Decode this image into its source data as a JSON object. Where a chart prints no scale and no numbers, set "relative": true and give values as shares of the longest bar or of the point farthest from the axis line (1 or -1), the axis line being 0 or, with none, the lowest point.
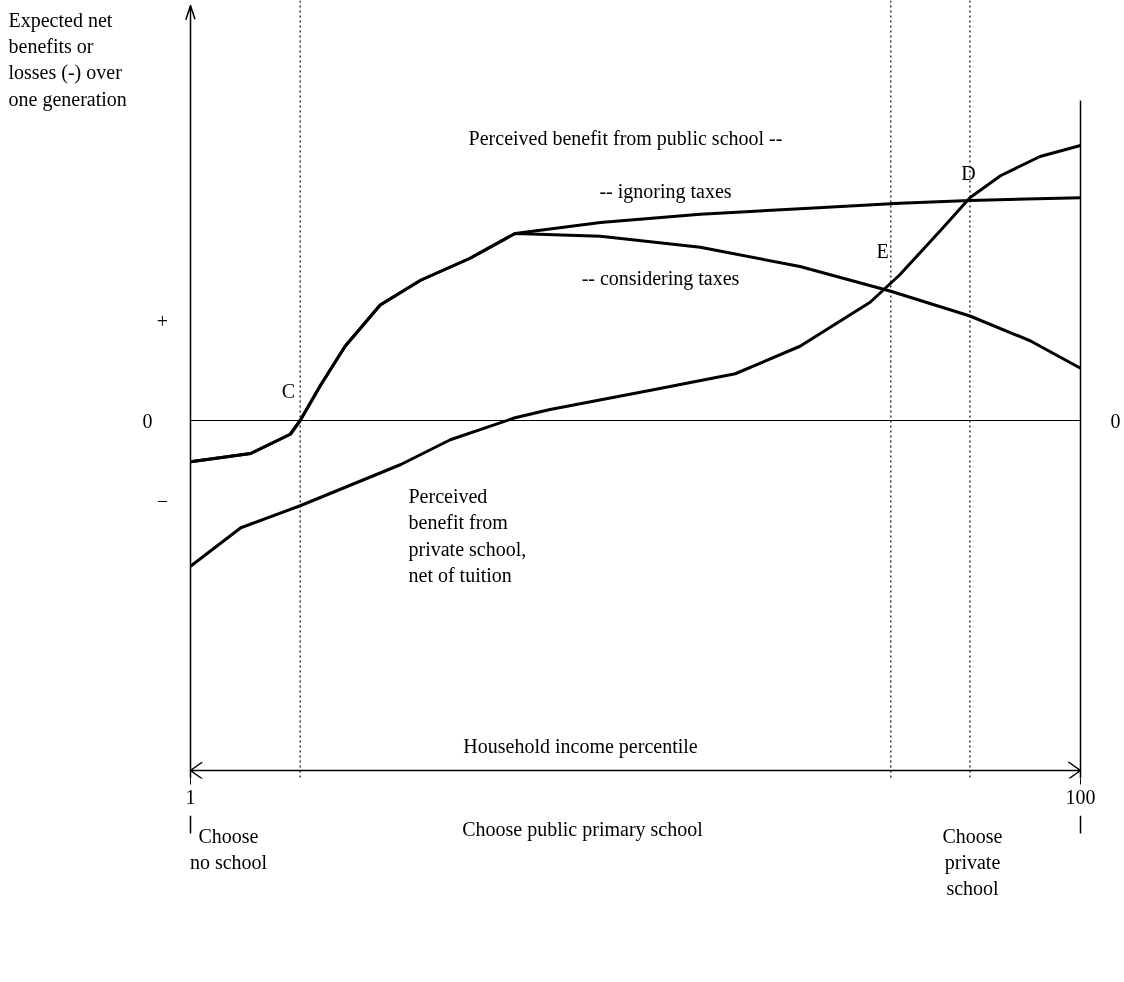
{
  "chart_data": {
    "type": "line",
    "relative": true,
    "xlabel": "Household income percentile",
    "ylabel": "Expected net benefits or losses (-) over one generation",
    "xlim": [
      1,
      100
    ],
    "xticks": [
      1,
      100
    ],
    "series": [
      {
        "color": "#000000",
        "x": [
          1,
          7.7,
          12.1,
          13.2,
          15.5,
          18.2,
          22.1,
          26.6,
          32.1,
          37.1,
          46.6,
          57.7,
          68.8,
          79.9,
          87.7,
          100
        ],
        "values": [
          -0.15,
          -0.12,
          -0.05,
          0,
          0.13,
          0.27,
          0.42,
          0.51,
          0.59,
          0.68,
          0.72,
          0.75,
          0.77,
          0.79,
          0.8,
          0.81
        ]
      },
      {
        "color": "#000000",
        "x": [
          1,
          7.7,
          12.1,
          13.2,
          15.5,
          18.2,
          22.1,
          26.6,
          32.1,
          37.1,
          46.6,
          57.7,
          68.8,
          78.9,
          87.7,
          94.4,
          100
        ],
        "values": [
          -0.15,
          -0.12,
          -0.05,
          0,
          0.13,
          0.27,
          0.42,
          0.51,
          0.59,
          0.68,
          0.67,
          0.63,
          0.56,
          0.47,
          0.38,
          0.29,
          0.19
        ]
      },
      {
        "color": "#000000",
        "x": [
          1,
          6.6,
          13.2,
          24.4,
          29.9,
          37.1,
          41.0,
          52.2,
          61.6,
          68.8,
          76.6,
          79.9,
          84.4,
          87.7,
          91.1,
          95.5,
          100
        ],
        "values": [
          -0.53,
          -0.39,
          -0.31,
          -0.16,
          -0.07,
          0.01,
          0.04,
          0.11,
          0.17,
          0.27,
          0.43,
          0.53,
          0.69,
          0.81,
          0.89,
          0.96,
          1
        ]
      }
    ],
    "ref_lines": [
      {
        "axis": "y",
        "value": 0,
        "color": "#000000",
        "line_style": "solid"
      },
      {
        "axis": "x",
        "value": 1,
        "color": "#000000",
        "line_style": "solid"
      },
      {
        "axis": "x",
        "value": 100,
        "color": "#000000",
        "line_style": "solid"
      },
      {
        "axis": "x",
        "value": 13.2,
        "color": "#000000",
        "line_style": "dotted"
      },
      {
        "axis": "x",
        "value": 78.9,
        "color": "#000000",
        "line_style": "dotted"
      },
      {
        "axis": "x",
        "value": 87.7,
        "color": "#000000",
        "line_style": "dotted"
      }
    ],
    "annotations": [
      "Perceived benefit from public school --",
      "-- ignoring taxes",
      "-- considering taxes",
      "Perceived\nbenefit from\nprivate school,\nnet of tuition",
      "C",
      "E",
      "D",
      "+",
      "−",
      "0",
      "0",
      "Choose\nno school",
      "Choose public primary school",
      "Choose\nprivate\nschool"
    ]
  }
}
